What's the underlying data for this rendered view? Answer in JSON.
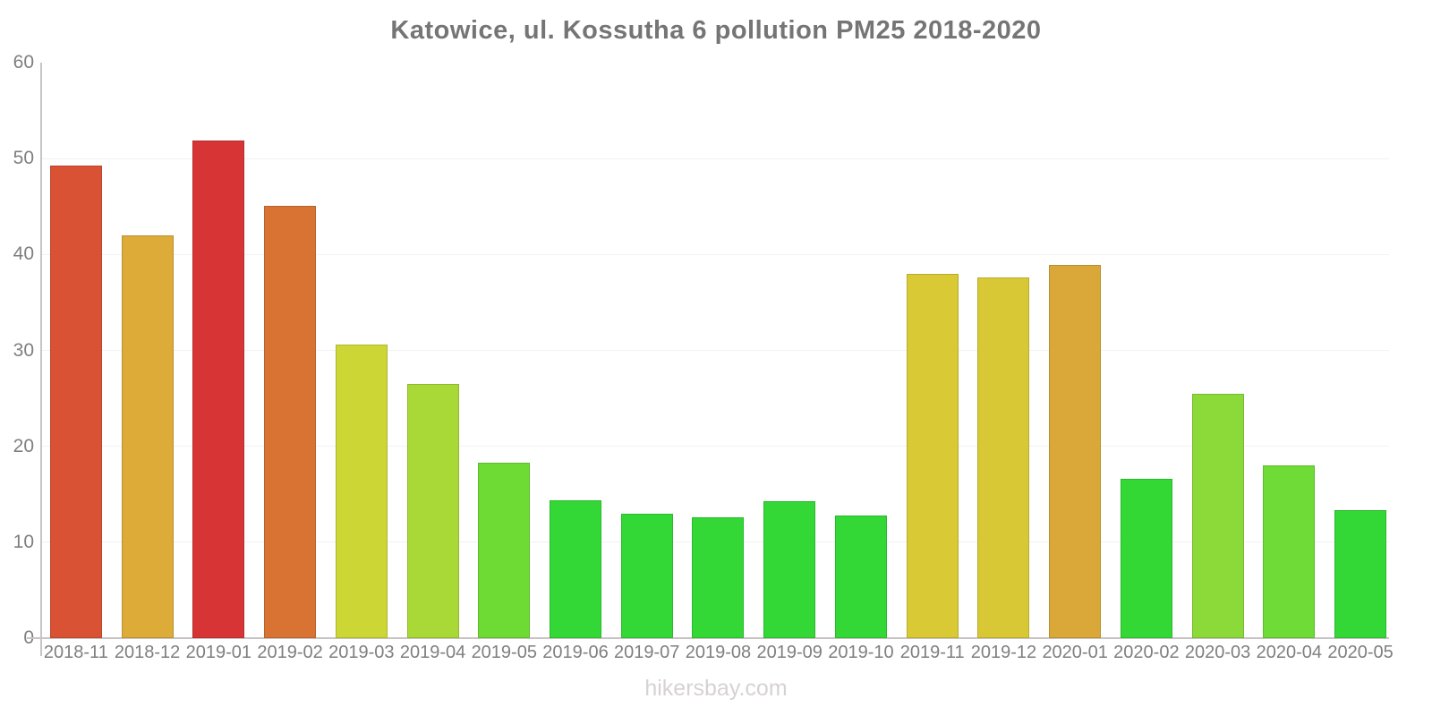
{
  "title": "Katowice, ul. Kossutha 6 pollution PM25 2018-2020",
  "watermark": "hikersbay.com",
  "colors": {
    "background": "#ffffff",
    "title_color": "#757575",
    "tick_label_color": "#7f7f7f",
    "axis_color": "#c9c4c4",
    "grid_color": "#f2f2f2",
    "watermark_color": "#d7d2d2"
  },
  "chart_data": {
    "type": "bar",
    "title": "Katowice, ul. Kossutha 6 pollution PM25 2018-2020",
    "xlabel": "",
    "ylabel": "",
    "ylim": [
      0,
      60
    ],
    "yticks": [
      0,
      10,
      20,
      30,
      40,
      50,
      60
    ],
    "grid": "horizontal-faint",
    "legend": "none",
    "categories": [
      "2018-11",
      "2018-12",
      "2019-01",
      "2019-02",
      "2019-03",
      "2019-04",
      "2019-05",
      "2019-06",
      "2019-07",
      "2019-08",
      "2019-09",
      "2019-10",
      "2019-11",
      "2019-12",
      "2020-01",
      "2020-02",
      "2020-03",
      "2020-04",
      "2020-05"
    ],
    "values": [
      49.3,
      42.0,
      51.9,
      45.1,
      30.6,
      26.5,
      18.3,
      14.4,
      13.0,
      12.6,
      14.3,
      12.8,
      38.0,
      37.6,
      38.9,
      16.6,
      25.5,
      18.0,
      13.3
    ],
    "bar_colors": [
      "#d95233",
      "#dcab38",
      "#d73535",
      "#d97334",
      "#ccd735",
      "#a8d936",
      "#6edb35",
      "#33d836",
      "#33d836",
      "#33d836",
      "#33d836",
      "#33d836",
      "#d9c935",
      "#d8c836",
      "#d9a839",
      "#33d835",
      "#8cd93a",
      "#6edb36",
      "#33d836"
    ]
  }
}
